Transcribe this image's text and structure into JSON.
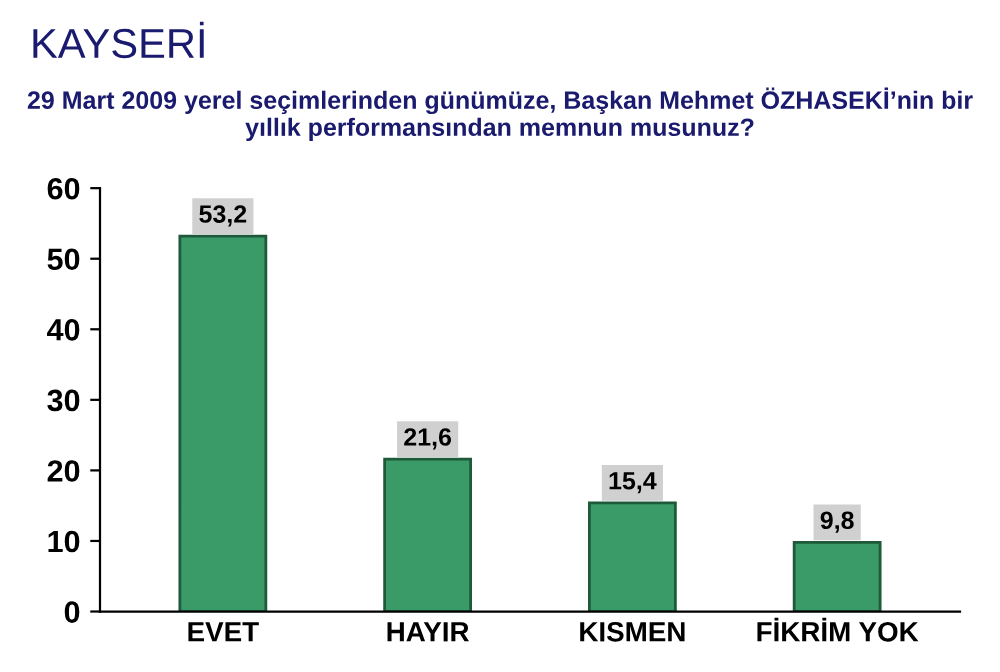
{
  "chart_data": {
    "type": "bar",
    "title": "KAYSERİ",
    "subtitle": "29 Mart 2009 yerel seçimlerinden günümüze, Başkan Mehmet ÖZHASEKİ’nin bir yıllık performansından memnun musunuz?",
    "categories": [
      "EVET",
      "HAYIR",
      "KISMEN",
      "FİKRİM YOK"
    ],
    "values": [
      53.2,
      21.6,
      15.4,
      9.8
    ],
    "value_labels": [
      "53,2",
      "21,6",
      "15,4",
      "9,8"
    ],
    "color": "#3a9a68",
    "ylim": [
      0,
      60
    ],
    "yticks": [
      0,
      10,
      20,
      30,
      40,
      50,
      60
    ],
    "grid": false
  }
}
